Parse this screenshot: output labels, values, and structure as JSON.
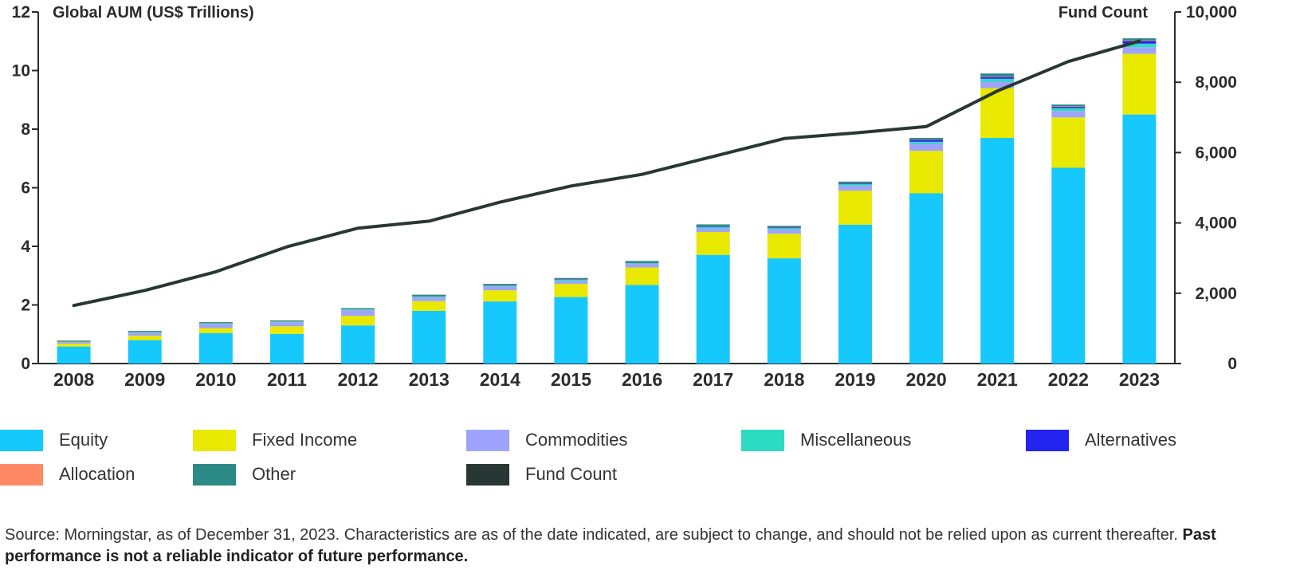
{
  "chart_data": {
    "type": "bar",
    "stacked": true,
    "categories": [
      "2008",
      "2009",
      "2010",
      "2011",
      "2012",
      "2013",
      "2014",
      "2015",
      "2016",
      "2017",
      "2018",
      "2019",
      "2020",
      "2021",
      "2022",
      "2023"
    ],
    "left_axis": {
      "title": "Global AUM (US$ Trillions)",
      "ylim": [
        0,
        12
      ],
      "ticks": [
        "0",
        "2",
        "4",
        "6",
        "8",
        "10",
        "12"
      ]
    },
    "right_axis": {
      "title": "Fund Count",
      "ylim": [
        0,
        10000
      ],
      "ticks": [
        "0",
        "2,000",
        "4,000",
        "6,000",
        "8,000",
        "10,000"
      ]
    },
    "series": [
      {
        "name": "Equity",
        "color": "#16c8fb",
        "values": [
          0.58,
          0.8,
          1.04,
          1.01,
          1.3,
          1.8,
          2.12,
          2.27,
          2.68,
          3.71,
          3.59,
          4.74,
          5.81,
          7.7,
          6.68,
          8.5
        ]
      },
      {
        "name": "Fixed Income",
        "color": "#e8e800",
        "values": [
          0.1,
          0.15,
          0.17,
          0.26,
          0.33,
          0.33,
          0.38,
          0.45,
          0.6,
          0.78,
          0.84,
          1.16,
          1.45,
          1.7,
          1.72,
          2.07
        ]
      },
      {
        "name": "Commodities",
        "color": "#9ea4fb",
        "values": [
          0.05,
          0.1,
          0.14,
          0.14,
          0.19,
          0.12,
          0.13,
          0.1,
          0.12,
          0.12,
          0.15,
          0.17,
          0.25,
          0.22,
          0.22,
          0.23
        ]
      },
      {
        "name": "Miscellaneous",
        "color": "#2cdbc2",
        "values": [
          0.01,
          0.02,
          0.02,
          0.02,
          0.03,
          0.04,
          0.03,
          0.04,
          0.03,
          0.05,
          0.04,
          0.05,
          0.06,
          0.1,
          0.1,
          0.12
        ]
      },
      {
        "name": "Alternatives",
        "color": "#2424f0",
        "values": [
          0.0,
          0.0,
          0.0,
          0.0,
          0.0,
          0.01,
          0.01,
          0.01,
          0.01,
          0.02,
          0.02,
          0.02,
          0.06,
          0.06,
          0.04,
          0.09
        ]
      },
      {
        "name": "Allocation",
        "color": "#fd8a64",
        "values": [
          0.01,
          0.01,
          0.01,
          0.01,
          0.01,
          0.01,
          0.01,
          0.01,
          0.01,
          0.01,
          0.01,
          0.01,
          0.01,
          0.02,
          0.02,
          0.02
        ]
      },
      {
        "name": "Other",
        "color": "#2b8a86",
        "values": [
          0.02,
          0.02,
          0.02,
          0.03,
          0.03,
          0.04,
          0.04,
          0.04,
          0.05,
          0.06,
          0.05,
          0.06,
          0.06,
          0.1,
          0.06,
          0.07
        ]
      }
    ],
    "line_series": {
      "name": "Fund Count",
      "color": "#283734",
      "axis": "right",
      "values": [
        1650,
        2080,
        2610,
        3320,
        3850,
        4050,
        4590,
        5050,
        5380,
        5890,
        6400,
        6560,
        6740,
        7750,
        8590,
        9170
      ]
    },
    "grid": false,
    "legend_position": "bottom"
  },
  "legend": [
    {
      "label": "Equity",
      "color": "#16c8fb"
    },
    {
      "label": "Fixed Income",
      "color": "#e8e800"
    },
    {
      "label": "Commodities",
      "color": "#9ea4fb"
    },
    {
      "label": "Miscellaneous",
      "color": "#2cdbc2"
    },
    {
      "label": "Alternatives",
      "color": "#2424f0"
    },
    {
      "label": "Allocation",
      "color": "#fd8a64"
    },
    {
      "label": "Other",
      "color": "#2b8a86"
    },
    {
      "label": "Fund Count",
      "color": "#283734"
    }
  ],
  "source": {
    "text": "Source: Morningstar, as of December 31, 2023. Characteristics are as of the date indicated, are subject to change, and should not be relied upon as current thereafter. ",
    "bold": "Past performance is not a reliable indicator of future performance."
  }
}
